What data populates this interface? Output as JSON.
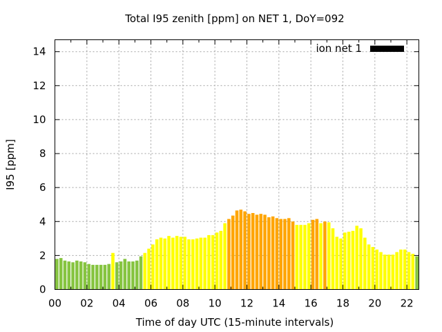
{
  "chart_data": {
    "type": "bar",
    "title": "Total I95 zenith [ppm] on NET 1, DoY=092",
    "xlabel": "Time of day UTC (15-minute intervals)",
    "ylabel": "I95 [ppm]",
    "xlim": [
      0,
      22.75
    ],
    "ylim": [
      0,
      14.7
    ],
    "grid": true,
    "legend_position": "top-right",
    "legend": [
      {
        "label": "ion net 1",
        "color": "#000000"
      }
    ],
    "xticks": [
      {
        "value": 0,
        "label": "00"
      },
      {
        "value": 2,
        "label": "02"
      },
      {
        "value": 4,
        "label": "04"
      },
      {
        "value": 6,
        "label": "06"
      },
      {
        "value": 8,
        "label": "08"
      },
      {
        "value": 10,
        "label": "10"
      },
      {
        "value": 12,
        "label": "12"
      },
      {
        "value": 14,
        "label": "14"
      },
      {
        "value": 16,
        "label": "16"
      },
      {
        "value": 18,
        "label": "18"
      },
      {
        "value": 20,
        "label": "20"
      },
      {
        "value": 22,
        "label": "22"
      }
    ],
    "yticks": [
      {
        "value": 0,
        "label": "0"
      },
      {
        "value": 2,
        "label": "2"
      },
      {
        "value": 4,
        "label": "4"
      },
      {
        "value": 6,
        "label": "6"
      },
      {
        "value": 8,
        "label": "8"
      },
      {
        "value": 10,
        "label": "10"
      },
      {
        "value": 12,
        "label": "12"
      },
      {
        "value": 14,
        "label": "14"
      }
    ],
    "bar_interval_hours": 0.25,
    "level_colors": {
      "low": "#86c440",
      "medium": "#ffff00",
      "high": "#ffa500"
    },
    "values": [
      1.8,
      1.85,
      1.7,
      1.65,
      1.6,
      1.7,
      1.65,
      1.6,
      1.5,
      1.45,
      1.45,
      1.45,
      1.45,
      1.5,
      2.15,
      1.6,
      1.65,
      1.8,
      1.65,
      1.65,
      1.7,
      1.95,
      2.15,
      2.4,
      2.65,
      2.95,
      3.05,
      3.0,
      3.15,
      3.05,
      3.15,
      3.1,
      3.1,
      2.95,
      2.95,
      3.0,
      3.05,
      3.05,
      3.2,
      3.2,
      3.35,
      3.45,
      3.9,
      4.15,
      4.35,
      4.65,
      4.7,
      4.6,
      4.45,
      4.5,
      4.4,
      4.45,
      4.4,
      4.25,
      4.3,
      4.2,
      4.15,
      4.15,
      4.2,
      4.0,
      3.8,
      3.8,
      3.8,
      3.9,
      4.1,
      4.15,
      3.9,
      4.0,
      3.95,
      3.6,
      3.1,
      3.0,
      3.35,
      3.4,
      3.45,
      3.75,
      3.6,
      3.05,
      2.65,
      2.5,
      2.35,
      2.2,
      2.05,
      2.05,
      2.05,
      2.2,
      2.35,
      2.35,
      2.2,
      2.1,
      1.95,
      1.95
    ],
    "levels": [
      "low",
      "low",
      "low",
      "low",
      "low",
      "low",
      "low",
      "low",
      "low",
      "low",
      "low",
      "low",
      "low",
      "low",
      "medium",
      "low",
      "low",
      "low",
      "low",
      "low",
      "low",
      "low",
      "medium",
      "medium",
      "medium",
      "medium",
      "medium",
      "medium",
      "medium",
      "medium",
      "medium",
      "medium",
      "medium",
      "medium",
      "medium",
      "medium",
      "medium",
      "medium",
      "medium",
      "medium",
      "medium",
      "medium",
      "medium",
      "high",
      "high",
      "high",
      "high",
      "high",
      "high",
      "high",
      "high",
      "high",
      "high",
      "high",
      "high",
      "high",
      "high",
      "high",
      "high",
      "high",
      "medium",
      "medium",
      "medium",
      "medium",
      "high",
      "high",
      "medium",
      "high",
      "medium",
      "medium",
      "medium",
      "medium",
      "medium",
      "medium",
      "medium",
      "medium",
      "medium",
      "medium",
      "medium",
      "medium",
      "medium",
      "medium",
      "medium",
      "medium",
      "medium",
      "medium",
      "medium",
      "medium",
      "medium",
      "medium",
      "low",
      "low"
    ]
  }
}
